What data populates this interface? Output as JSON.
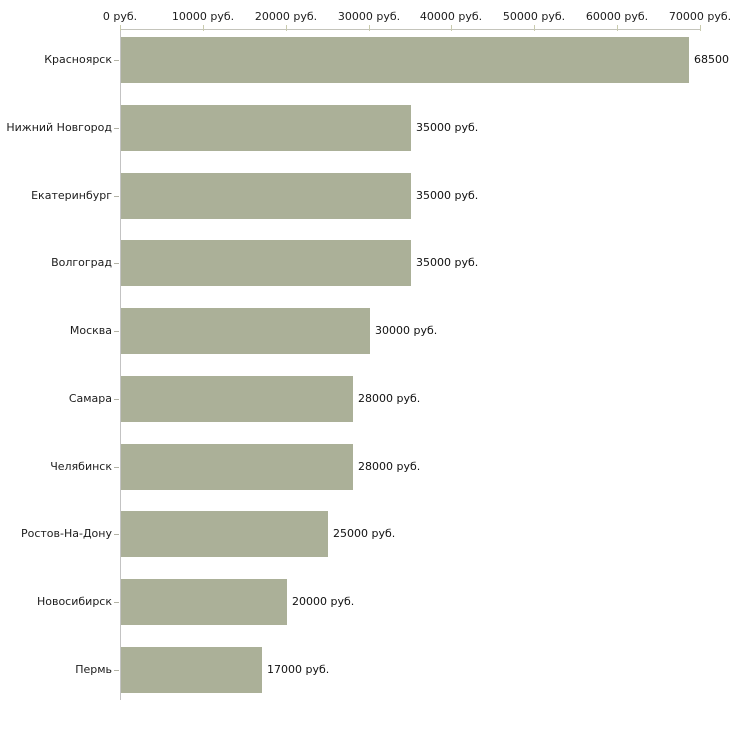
{
  "chart_data": {
    "type": "bar",
    "orientation": "horizontal",
    "title": "",
    "xlabel": "",
    "ylabel": "",
    "xlim": [
      0,
      70000
    ],
    "grid": false,
    "legend": null,
    "x_tick_values": [
      0,
      10000,
      20000,
      30000,
      40000,
      50000,
      60000,
      70000
    ],
    "x_tick_labels": [
      "0 руб.",
      "10000 руб.",
      "20000 руб.",
      "30000 руб.",
      "40000 руб.",
      "50000 руб.",
      "60000 руб.",
      "70000 руб."
    ],
    "categories": [
      "Красноярск",
      "Нижний Новгород",
      "Екатеринбург",
      "Волгоград",
      "Москва",
      "Самара",
      "Челябинск",
      "Ростов-На-Дону",
      "Новосибирск",
      "Пермь"
    ],
    "values": [
      68500,
      35000,
      35000,
      35000,
      30000,
      28000,
      28000,
      25000,
      20000,
      17000
    ],
    "value_labels": [
      "68500",
      "35000 руб.",
      "35000 руб.",
      "35000 руб.",
      "30000 руб.",
      "28000 руб.",
      "28000 руб.",
      "25000 руб.",
      "20000 руб.",
      "17000 руб."
    ],
    "colors": {
      "bar": "#abb098",
      "axis_line": "#c4c4bb",
      "vertical_axis_line": "#c3c3c3",
      "x_tick": "#c9cbae",
      "y_tick": "#b3b3a6",
      "text": "#1c1c1c"
    }
  }
}
